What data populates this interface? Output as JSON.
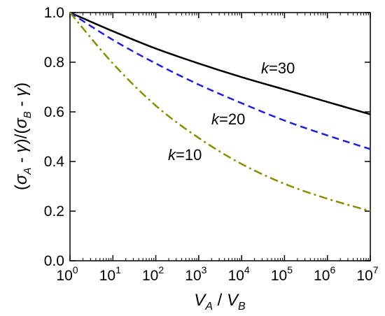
{
  "chart_data": {
    "type": "line",
    "title": "",
    "xscale": "log",
    "xlim_exponents": [
      0,
      7
    ],
    "ylim": [
      0.0,
      1.0
    ],
    "xticks": [
      {
        "base": "10",
        "exp": "0"
      },
      {
        "base": "10",
        "exp": "1"
      },
      {
        "base": "10",
        "exp": "2"
      },
      {
        "base": "10",
        "exp": "3"
      },
      {
        "base": "10",
        "exp": "4"
      },
      {
        "base": "10",
        "exp": "5"
      },
      {
        "base": "10",
        "exp": "6"
      },
      {
        "base": "10",
        "exp": "7"
      }
    ],
    "yticks": [
      "0.0",
      "0.2",
      "0.4",
      "0.6",
      "0.8",
      "1.0"
    ],
    "xlabel": {
      "v1": "V",
      "s1": "A",
      "mid": " / ",
      "v2": "V",
      "s2": "B"
    },
    "ylabel": {
      "p1": "(",
      "s1": "σ",
      "sub1": "A",
      "mid1": " - ",
      "g1": "γ",
      "p2": ")/(",
      "s2": "σ",
      "sub2": "B",
      "mid2": " - ",
      "g2": "γ",
      "p3": ")"
    },
    "grid": false,
    "series": [
      {
        "label_k": "k",
        "label_value": "=30",
        "color": "#000000",
        "dash": "solid",
        "x": [
          1,
          10,
          100,
          1000,
          10000,
          100000,
          1000000,
          10000000
        ],
        "y": [
          1.0,
          0.925,
          0.855,
          0.795,
          0.74,
          0.69,
          0.64,
          0.59
        ]
      },
      {
        "label_k": "k",
        "label_value": "=20",
        "color": "#1f1fd6",
        "dash": "dashed",
        "x": [
          1,
          10,
          100,
          1000,
          10000,
          100000,
          1000000,
          10000000
        ],
        "y": [
          1.0,
          0.89,
          0.795,
          0.71,
          0.635,
          0.565,
          0.505,
          0.45
        ]
      },
      {
        "label_k": "k",
        "label_value": "=10",
        "color": "#8b8b00",
        "dash": "dashdot",
        "x": [
          1,
          10,
          100,
          1000,
          10000,
          100000,
          1000000,
          10000000
        ],
        "y": [
          1.0,
          0.795,
          0.625,
          0.495,
          0.39,
          0.31,
          0.25,
          0.2
        ]
      }
    ]
  }
}
